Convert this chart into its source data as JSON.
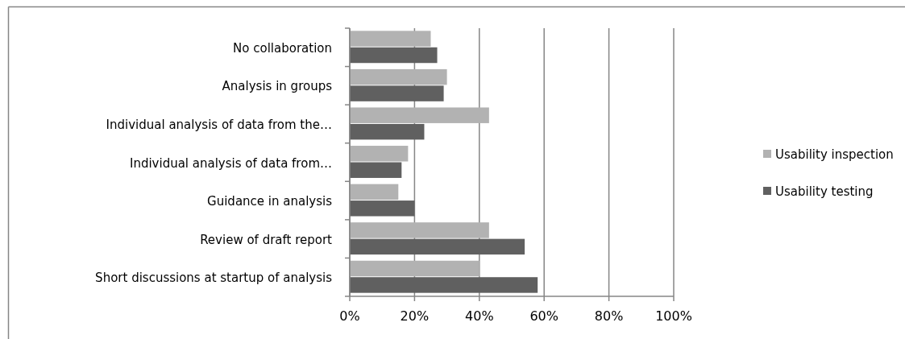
{
  "chart_data": {
    "type": "bar",
    "orientation": "horizontal",
    "categories": [
      "No collaboration",
      "Analysis in groups",
      "Individual analysis of data from the…",
      "Individual analysis of data from…",
      "Guidance in analysis",
      "Review of draft report",
      "Short discussions at startup of analysis"
    ],
    "series": [
      {
        "name": "Usability inspection",
        "color": "#b2b2b2",
        "values": [
          25,
          30,
          43,
          18,
          15,
          43,
          40
        ]
      },
      {
        "name": "Usability testing",
        "color": "#606060",
        "values": [
          27,
          29,
          23,
          16,
          20,
          54,
          58
        ]
      }
    ],
    "xlim": [
      0,
      100
    ],
    "xticks": [
      {
        "value": 0,
        "label": "0%"
      },
      {
        "value": 20,
        "label": "20%"
      },
      {
        "value": 40,
        "label": "40%"
      },
      {
        "value": 60,
        "label": "60%"
      },
      {
        "value": 80,
        "label": "80%"
      },
      {
        "value": 100,
        "label": "100%"
      }
    ],
    "grid": "x",
    "legend": "right"
  }
}
